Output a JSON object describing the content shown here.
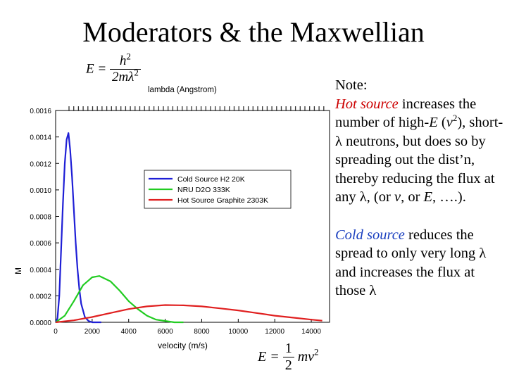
{
  "title": "Moderators & the Maxwellian",
  "formula_top": {
    "lhs": "E =",
    "numerator": "h",
    "num_exp": "2",
    "denominator": "2mλ",
    "den_exp": "2"
  },
  "formula_bottom": {
    "lhs": "E =",
    "numerator": "1",
    "denominator": "2",
    "term": "mv",
    "term_exp": "2"
  },
  "note": {
    "heading": "Note:",
    "p1_a": "Hot source",
    "p1_b": " increases the number of high-",
    "p1_c": "E",
    "p1_d": " (",
    "p1_e": "v",
    "p1_f": "2",
    "p1_g": "), short-λ neutrons, but does so by spreading out the dist’n, thereby reducing the flux at any λ, (or ",
    "p1_h": "v",
    "p1_i": ", or ",
    "p1_j": "E",
    "p1_k": ", ….).",
    "p2_a": "Cold source",
    "p2_b": " reduces the spread to only very long λ and increases the flux at those λ"
  },
  "colors": {
    "cold": "#1f1fd6",
    "nra": "#22cc22",
    "hot": "#e02020"
  },
  "chart_data": {
    "type": "line",
    "xlabel": "velocity (m/s)",
    "top_axis_label": "lambda (Angstrom)",
    "ylabel": "M",
    "xlim": [
      0,
      15000
    ],
    "ylim": [
      0,
      0.0016
    ],
    "xticks": [
      "0",
      "2000",
      "4000",
      "6000",
      "8000",
      "10000",
      "12000",
      "14000"
    ],
    "yticks": [
      "0.0000",
      "0.0002",
      "0.0004",
      "0.0006",
      "0.0008",
      "0.0010",
      "0.0012",
      "0.0014",
      "0.0016"
    ],
    "legend_position": "center-right",
    "series": [
      {
        "name": "Cold Source H2 20K",
        "color": "#1f1fd6",
        "x": [
          0,
          100,
          200,
          300,
          400,
          500,
          600,
          700,
          800,
          900,
          1000,
          1100,
          1200,
          1300,
          1400,
          1600,
          1800,
          2000,
          2500
        ],
        "y": [
          0,
          3e-05,
          0.0002,
          0.00055,
          0.0009,
          0.0012,
          0.00138,
          0.00143,
          0.0013,
          0.0011,
          0.00085,
          0.0006,
          0.0004,
          0.00025,
          0.00014,
          4e-05,
          1e-05,
          0,
          0
        ]
      },
      {
        "name": "NRU D2O 333K",
        "color": "#22cc22",
        "x": [
          0,
          500,
          1000,
          1500,
          2000,
          2400,
          3000,
          3500,
          4000,
          4500,
          5000,
          5500,
          6000,
          6500,
          7000
        ],
        "y": [
          0,
          5e-05,
          0.00016,
          0.00028,
          0.00034,
          0.00035,
          0.00031,
          0.00024,
          0.00016,
          0.0001,
          5e-05,
          2e-05,
          1e-05,
          0,
          0
        ]
      },
      {
        "name": "Hot Source Graphite 2303K",
        "color": "#e02020",
        "x": [
          0,
          1000,
          2000,
          3000,
          4000,
          5000,
          6000,
          7000,
          8000,
          9000,
          10000,
          11000,
          12000,
          13000,
          14000,
          14600
        ],
        "y": [
          0,
          1.5e-05,
          4e-05,
          7e-05,
          0.0001,
          0.00012,
          0.00013,
          0.000128,
          0.00012,
          0.000105,
          9e-05,
          7e-05,
          5e-05,
          3.5e-05,
          2e-05,
          1.2e-05
        ]
      }
    ]
  }
}
